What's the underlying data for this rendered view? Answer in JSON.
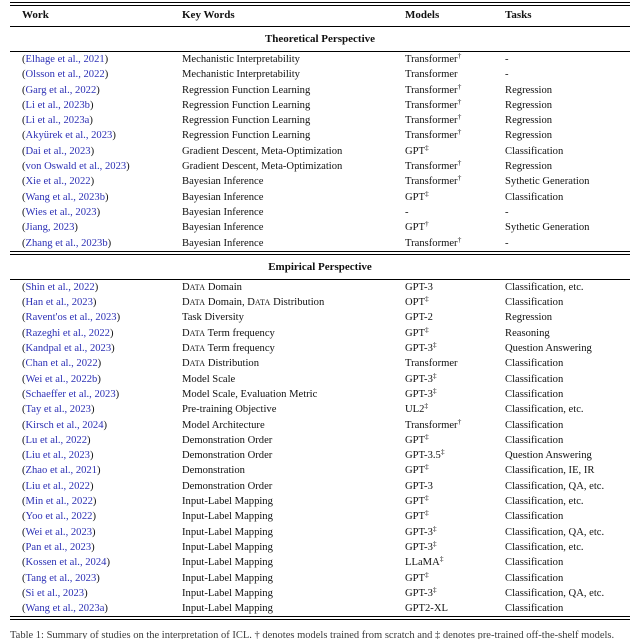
{
  "table": {
    "columns": [
      "Work",
      "Key Words",
      "Models",
      "Tasks"
    ],
    "sections": [
      {
        "title": "Theoretical Perspective",
        "rows": [
          {
            "work": "Elhage et al., 2021",
            "keywords": "Mechanistic Interpretability",
            "model": "Transformer",
            "mark": "†",
            "tasks": "-"
          },
          {
            "work": "Olsson et al., 2022",
            "keywords": "Mechanistic Interpretability",
            "model": "Transformer",
            "mark": "",
            "tasks": "-"
          },
          {
            "work": "Garg et al., 2022",
            "keywords": "Regression Function Learning",
            "model": "Transformer",
            "mark": "†",
            "tasks": "Regression"
          },
          {
            "work": "Li et al., 2023b",
            "keywords": "Regression Function Learning",
            "model": "Transformer",
            "mark": "†",
            "tasks": "Regression"
          },
          {
            "work": "Li et al., 2023a",
            "keywords": "Regression Function Learning",
            "model": "Transformer",
            "mark": "†",
            "tasks": "Regression"
          },
          {
            "work": "Akyürek et al., 2023",
            "keywords": "Regression Function Learning",
            "model": "Transformer",
            "mark": "†",
            "tasks": "Regression"
          },
          {
            "work": "Dai et al., 2023",
            "keywords": "Gradient Descent, Meta-Optimization",
            "model": "GPT",
            "mark": "‡",
            "tasks": "Classification"
          },
          {
            "work": "von Oswald et al., 2023",
            "keywords": "Gradient Descent, Meta-Optimization",
            "model": "Transformer",
            "mark": "†",
            "tasks": "Regression"
          },
          {
            "work": "Xie et al., 2022",
            "keywords": "Bayesian Inference",
            "model": "Transformer",
            "mark": "†",
            "tasks": "Sythetic Generation"
          },
          {
            "work": "Wang et al., 2023b",
            "keywords": "Bayesian Inference",
            "model": "GPT",
            "mark": "‡",
            "tasks": "Classification"
          },
          {
            "work": "Wies et al., 2023",
            "keywords": "Bayesian Inference",
            "model": "-",
            "mark": "",
            "tasks": "-"
          },
          {
            "work": "Jiang, 2023",
            "keywords": "Bayesian Inference",
            "model": "GPT",
            "mark": "†",
            "tasks": "Sythetic Generation"
          },
          {
            "work": "Zhang et al., 2023b",
            "keywords": "Bayesian Inference",
            "model": "Transformer",
            "mark": "†",
            "tasks": "-"
          }
        ]
      },
      {
        "title": "Empirical Perspective",
        "rows": [
          {
            "work": "Shin et al., 2022",
            "keywords": "Data Domain",
            "model": "GPT-3",
            "mark": "",
            "tasks": "Classification, etc."
          },
          {
            "work": "Han et al., 2023",
            "keywords": "Data Domain, Data Distribution",
            "model": "OPT",
            "mark": "‡",
            "tasks": "Classification"
          },
          {
            "work": "Ravent'os et al., 2023",
            "keywords": "Task Diversity",
            "model": "GPT-2",
            "mark": "",
            "tasks": "Regression"
          },
          {
            "work": "Razeghi et al., 2022",
            "keywords": "Data Term frequency",
            "model": "GPT",
            "mark": "‡",
            "tasks": "Reasoning"
          },
          {
            "work": "Kandpal et al., 2023",
            "keywords": "Data Term frequency",
            "model": "GPT-3",
            "mark": "‡",
            "tasks": "Question Answering"
          },
          {
            "work": "Chan et al., 2022",
            "keywords": "Data Distribution",
            "model": "Transformer",
            "mark": "",
            "tasks": "Classification"
          },
          {
            "work": "Wei et al., 2022b",
            "keywords": "Model Scale",
            "model": "GPT-3",
            "mark": "‡",
            "tasks": "Classification"
          },
          {
            "work": "Schaeffer et al., 2023",
            "keywords": "Model Scale, Evaluation Metric",
            "model": "GPT-3",
            "mark": "‡",
            "tasks": "Classification"
          },
          {
            "work": "Tay et al., 2023",
            "keywords": "Pre-training Objective",
            "model": "UL2",
            "mark": "‡",
            "tasks": "Classification, etc."
          },
          {
            "work": "Kirsch et al., 2024",
            "keywords": "Model Architecture",
            "model": "Transformer",
            "mark": "†",
            "tasks": "Classification"
          },
          {
            "work": "Lu et al., 2022",
            "keywords": "Demonstration Order",
            "model": "GPT",
            "mark": "‡",
            "tasks": "Classification"
          },
          {
            "work": "Liu et al., 2023",
            "keywords": "Demonstration Order",
            "model": "GPT-3.5",
            "mark": "‡",
            "tasks": "Question Answering"
          },
          {
            "work": "Zhao et al., 2021",
            "keywords": "Demonstration",
            "model": "GPT",
            "mark": "‡",
            "tasks": "Classification, IE, IR"
          },
          {
            "work": "Liu et al., 2022",
            "keywords": "Demonstration Order",
            "model": "GPT-3",
            "mark": "",
            "tasks": "Classification, QA, etc."
          },
          {
            "work": "Min et al., 2022",
            "keywords": "Input-Label Mapping",
            "model": "GPT",
            "mark": "‡",
            "tasks": "Classification, etc."
          },
          {
            "work": "Yoo et al., 2022",
            "keywords": "Input-Label Mapping",
            "model": "GPT",
            "mark": "‡",
            "tasks": "Classification"
          },
          {
            "work": "Wei et al., 2023",
            "keywords": "Input-Label Mapping",
            "model": "GPT-3",
            "mark": "‡",
            "tasks": "Classification, QA, etc."
          },
          {
            "work": "Pan et al., 2023",
            "keywords": "Input-Label Mapping",
            "model": "GPT-3",
            "mark": "‡",
            "tasks": "Classification, etc."
          },
          {
            "work": "Kossen et al., 2024",
            "keywords": "Input-Label Mapping",
            "model": "LLaMA",
            "mark": "‡",
            "tasks": "Classification"
          },
          {
            "work": "Tang et al., 2023",
            "keywords": "Input-Label Mapping",
            "model": "GPT",
            "mark": "‡",
            "tasks": "Classification"
          },
          {
            "work": "Si et al., 2023",
            "keywords": "Input-Label Mapping",
            "model": "GPT-3",
            "mark": "‡",
            "tasks": "Classification, QA, etc."
          },
          {
            "work": "Wang et al., 2023a",
            "keywords": "Input-Label Mapping",
            "model": "GPT2-XL",
            "mark": "",
            "tasks": "Classification"
          }
        ]
      }
    ]
  },
  "caption": "Table 1: Summary of studies on the interpretation of ICL. † denotes models trained from scratch and ‡ denotes pre-trained off-the-shelf models."
}
